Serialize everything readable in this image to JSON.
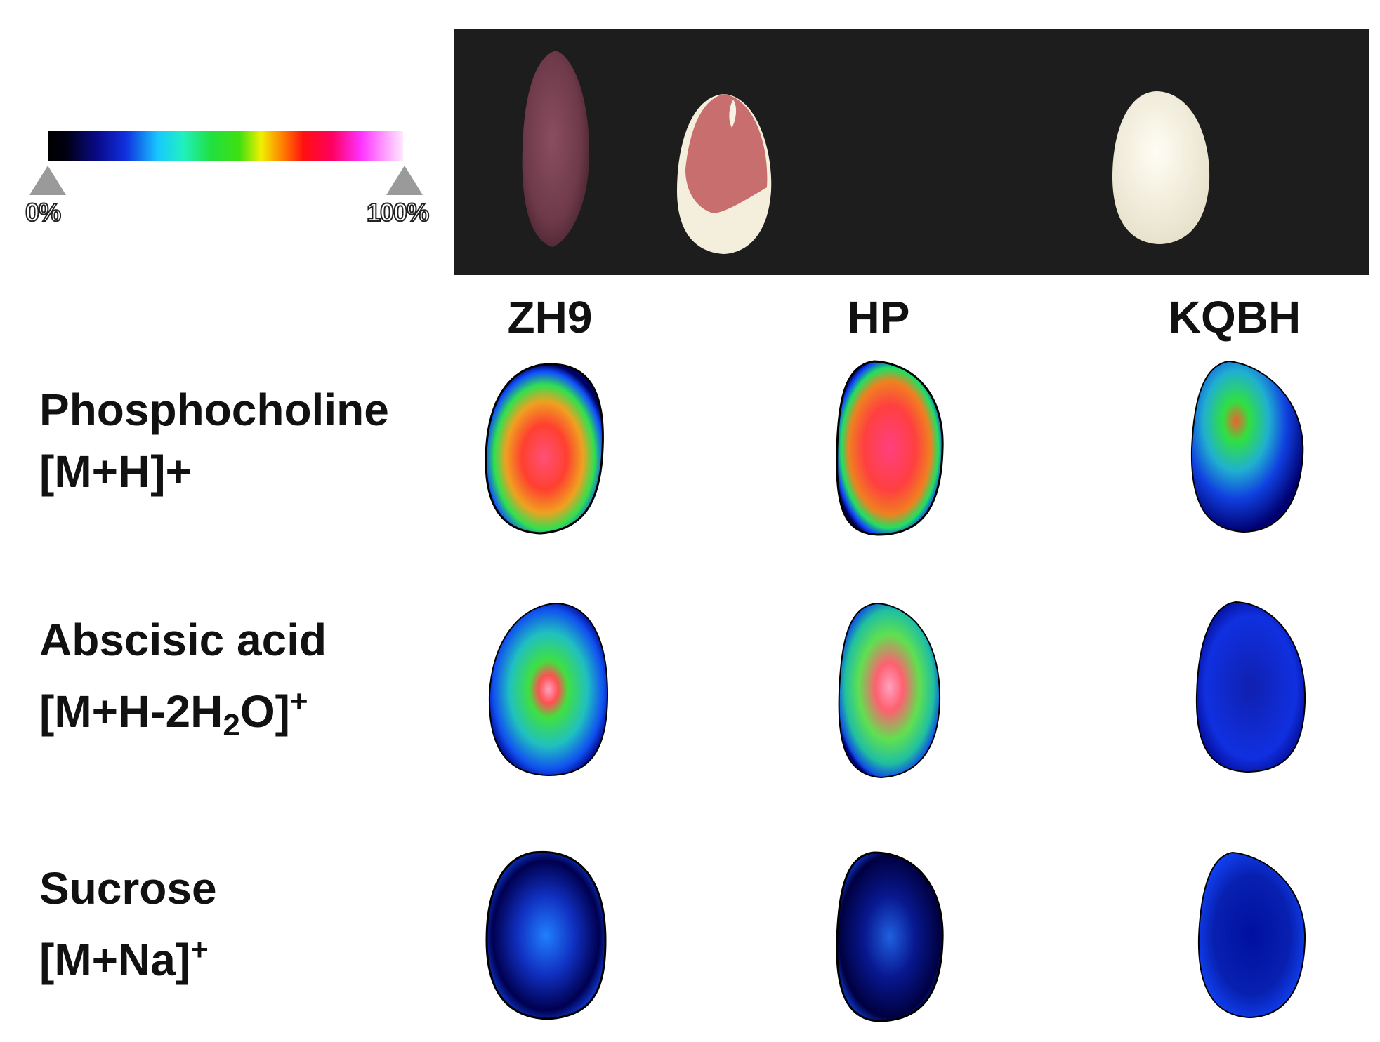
{
  "scale": {
    "min_label": "0%",
    "max_label": "100%"
  },
  "columns": [
    {
      "label": "ZH9"
    },
    {
      "label": "HP"
    },
    {
      "label": "KQBH"
    }
  ],
  "rows": [
    {
      "name": "Phosphocholine",
      "adduct": "[M+H]+"
    },
    {
      "name": "Abscisic acid",
      "adduct_pre": "[M+H-2H",
      "adduct_sub": "2",
      "adduct_mid": "O]",
      "adduct_sup": "+"
    },
    {
      "name": "Sucrose",
      "adduct_pre": "[M+Na]",
      "adduct_sup": "+"
    }
  ],
  "colors": {
    "photo_background": "#1d1d1d",
    "seed_zh9": "#6e3a4a",
    "seed_hp_red": "#c86e6e",
    "seed_hp_white": "#f4eedc",
    "seed_kqbh": "#f6f3e6"
  }
}
